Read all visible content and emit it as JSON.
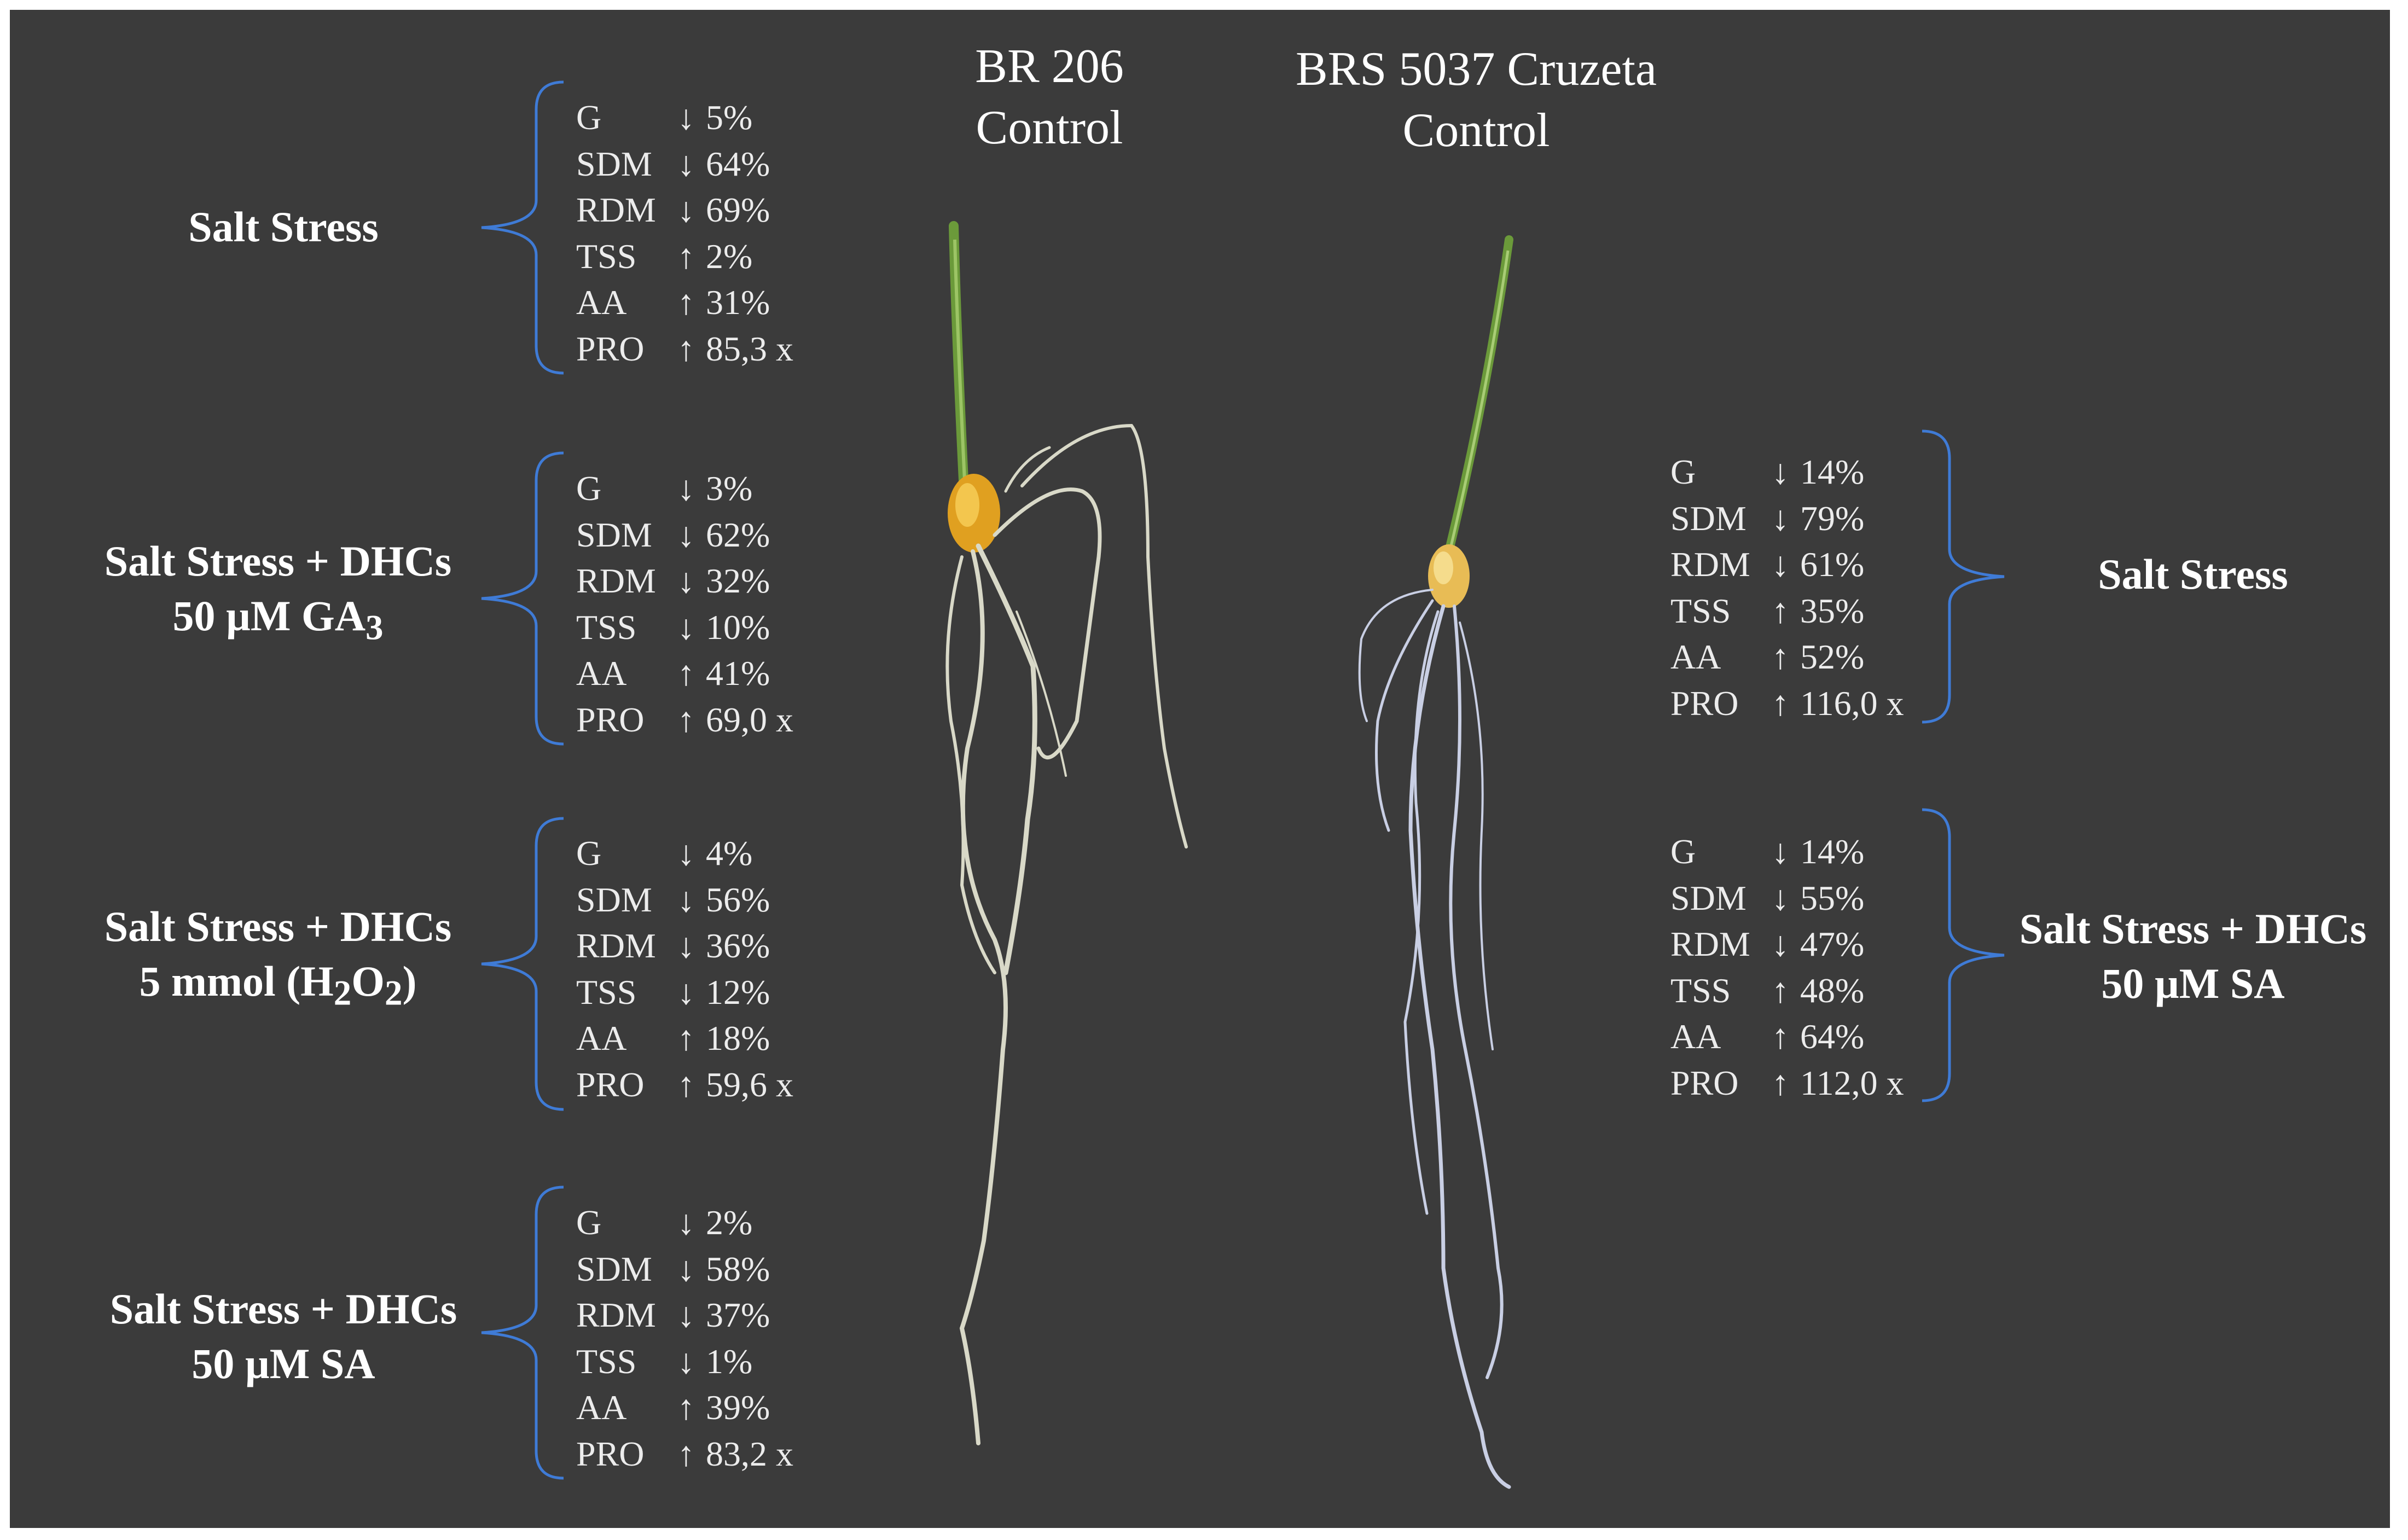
{
  "colors": {
    "background": "#3b3b3b",
    "bracket": "#3f7bd6",
    "text": "#ffffff"
  },
  "titles": {
    "br206": [
      "BR 206",
      "Control"
    ],
    "brs5037": [
      "BRS 5037 Cruzeta",
      "Control"
    ]
  },
  "left_groups": [
    {
      "label": [
        "Salt Stress"
      ],
      "rows": [
        {
          "param": "G",
          "arrow": "↓",
          "value": "5%"
        },
        {
          "param": "SDM",
          "arrow": "↓",
          "value": "64%"
        },
        {
          "param": "RDM",
          "arrow": "↓",
          "value": "69%"
        },
        {
          "param": "TSS",
          "arrow": "↑",
          "value": "2%"
        },
        {
          "param": "AA",
          "arrow": "↑",
          "value": "31%"
        },
        {
          "param": "PRO",
          "arrow": "↑",
          "value": "85,3 x"
        }
      ]
    },
    {
      "label": [
        "Salt Stress + DHCs",
        "50 µM GA3"
      ],
      "rows": [
        {
          "param": "G",
          "arrow": "↓",
          "value": "3%"
        },
        {
          "param": "SDM",
          "arrow": "↓",
          "value": "62%"
        },
        {
          "param": "RDM",
          "arrow": "↓",
          "value": "32%"
        },
        {
          "param": "TSS",
          "arrow": "↓",
          "value": "10%"
        },
        {
          "param": "AA",
          "arrow": "↑",
          "value": "41%"
        },
        {
          "param": "PRO",
          "arrow": "↑",
          "value": "69,0 x"
        }
      ]
    },
    {
      "label": [
        "Salt Stress + DHCs",
        "5 mmol (H2O2)"
      ],
      "rows": [
        {
          "param": "G",
          "arrow": "↓",
          "value": "4%"
        },
        {
          "param": "SDM",
          "arrow": "↓",
          "value": "56%"
        },
        {
          "param": "RDM",
          "arrow": "↓",
          "value": "36%"
        },
        {
          "param": "TSS",
          "arrow": "↓",
          "value": "12%"
        },
        {
          "param": "AA",
          "arrow": "↑",
          "value": "18%"
        },
        {
          "param": "PRO",
          "arrow": "↑",
          "value": "59,6 x"
        }
      ]
    },
    {
      "label": [
        "Salt Stress + DHCs",
        "50 µM SA"
      ],
      "rows": [
        {
          "param": "G",
          "arrow": "↓",
          "value": "2%"
        },
        {
          "param": "SDM",
          "arrow": "↓",
          "value": "58%"
        },
        {
          "param": "RDM",
          "arrow": "↓",
          "value": "37%"
        },
        {
          "param": "TSS",
          "arrow": "↓",
          "value": "1%"
        },
        {
          "param": "AA",
          "arrow": "↑",
          "value": "39%"
        },
        {
          "param": "PRO",
          "arrow": "↑",
          "value": "83,2 x"
        }
      ]
    }
  ],
  "right_groups": [
    {
      "label": [
        "Salt Stress"
      ],
      "rows": [
        {
          "param": "G",
          "arrow": "↓",
          "value": "14%"
        },
        {
          "param": "SDM",
          "arrow": "↓",
          "value": "79%"
        },
        {
          "param": "RDM",
          "arrow": "↓",
          "value": "61%"
        },
        {
          "param": "TSS",
          "arrow": "↑",
          "value": "35%"
        },
        {
          "param": "AA",
          "arrow": "↑",
          "value": "52%"
        },
        {
          "param": "PRO",
          "arrow": "↑",
          "value": "116,0 x"
        }
      ]
    },
    {
      "label": [
        "Salt Stress + DHCs",
        "50 µM SA"
      ],
      "rows": [
        {
          "param": "G",
          "arrow": "↓",
          "value": "14%"
        },
        {
          "param": "SDM",
          "arrow": "↓",
          "value": "55%"
        },
        {
          "param": "RDM",
          "arrow": "↓",
          "value": "47%"
        },
        {
          "param": "TSS",
          "arrow": "↑",
          "value": "48%"
        },
        {
          "param": "AA",
          "arrow": "↑",
          "value": "64%"
        },
        {
          "param": "PRO",
          "arrow": "↑",
          "value": "112,0 x"
        }
      ]
    }
  ]
}
